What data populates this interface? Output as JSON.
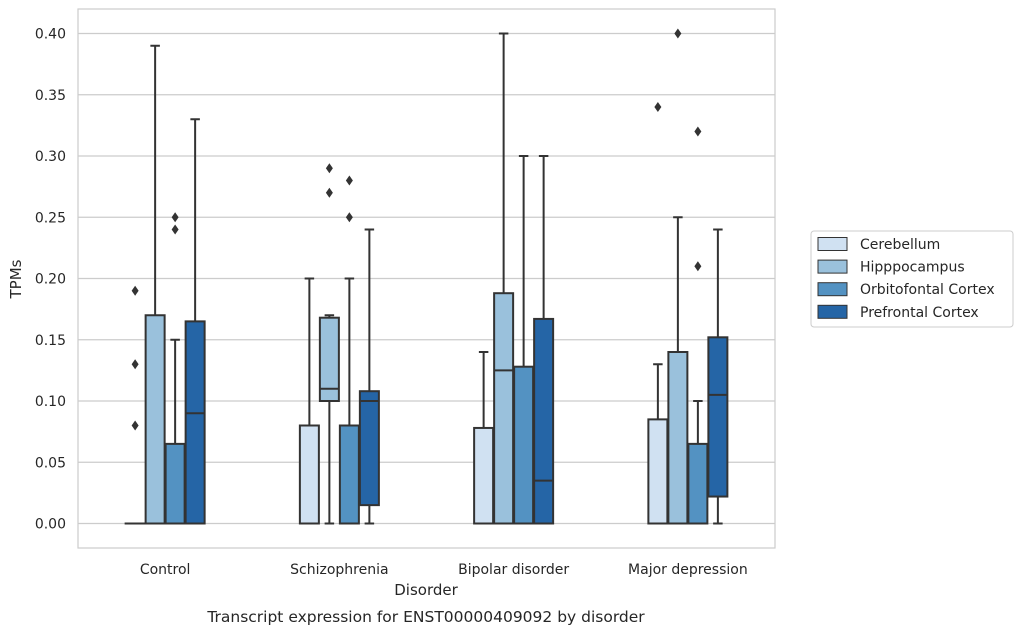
{
  "chart_data": {
    "type": "box",
    "xlabel": "Disorder",
    "ylabel": "TPMs",
    "caption": "Transcript expression for ENST00000409092 by disorder",
    "ylim": [
      -0.02,
      0.42
    ],
    "yticks": [
      "0.00",
      "0.05",
      "0.10",
      "0.15",
      "0.20",
      "0.25",
      "0.30",
      "0.35",
      "0.40"
    ],
    "grid": "horizontal",
    "legend_position": "right",
    "categories": [
      "Control",
      "Schizophrenia",
      "Bipolar disorder",
      "Major depression"
    ],
    "series": [
      {
        "name": "Cerebellum",
        "color": "#d0e1f2",
        "boxes": [
          {
            "whisker_low": 0,
            "q1": 0,
            "median": 0,
            "q3": 0,
            "whisker_high": 0,
            "outliers": [
              0.08,
              0.13,
              0.19
            ]
          },
          {
            "whisker_low": 0,
            "q1": 0,
            "median": 0,
            "q3": 0.08,
            "whisker_high": 0.2,
            "outliers": []
          },
          {
            "whisker_low": 0,
            "q1": 0,
            "median": 0,
            "q3": 0.078,
            "whisker_high": 0.14,
            "outliers": []
          },
          {
            "whisker_low": 0,
            "q1": 0,
            "median": 0,
            "q3": 0.085,
            "whisker_high": 0.13,
            "outliers": [
              0.34
            ]
          }
        ]
      },
      {
        "name": "Hipppocampus",
        "color": "#9ac1dc",
        "boxes": [
          {
            "whisker_low": 0,
            "q1": 0,
            "median": 0,
            "q3": 0.17,
            "whisker_high": 0.39,
            "outliers": []
          },
          {
            "whisker_low": 0,
            "q1": 0.1,
            "median": 0.11,
            "q3": 0.168,
            "whisker_high": 0.17,
            "outliers": [
              0.27,
              0.29
            ]
          },
          {
            "whisker_low": 0,
            "q1": 0,
            "median": 0.125,
            "q3": 0.188,
            "whisker_high": 0.4,
            "outliers": []
          },
          {
            "whisker_low": 0,
            "q1": 0,
            "median": 0,
            "q3": 0.14,
            "whisker_high": 0.25,
            "outliers": [
              0.4
            ]
          }
        ]
      },
      {
        "name": "Orbitofontal Cortex",
        "color": "#5392c2",
        "boxes": [
          {
            "whisker_low": 0,
            "q1": 0,
            "median": 0,
            "q3": 0.065,
            "whisker_high": 0.15,
            "outliers": [
              0.24,
              0.25
            ]
          },
          {
            "whisker_low": 0,
            "q1": 0,
            "median": 0,
            "q3": 0.08,
            "whisker_high": 0.2,
            "outliers": [
              0.25,
              0.28
            ]
          },
          {
            "whisker_low": 0,
            "q1": 0,
            "median": 0,
            "q3": 0.128,
            "whisker_high": 0.3,
            "outliers": []
          },
          {
            "whisker_low": 0,
            "q1": 0,
            "median": 0,
            "q3": 0.065,
            "whisker_high": 0.1,
            "outliers": [
              0.21,
              0.32
            ]
          }
        ]
      },
      {
        "name": "Prefrontal Cortex",
        "color": "#2565a6",
        "boxes": [
          {
            "whisker_low": 0,
            "q1": 0,
            "median": 0.09,
            "q3": 0.165,
            "whisker_high": 0.33,
            "outliers": []
          },
          {
            "whisker_low": 0,
            "q1": 0.015,
            "median": 0.1,
            "q3": 0.108,
            "whisker_high": 0.24,
            "outliers": []
          },
          {
            "whisker_low": 0,
            "q1": 0,
            "median": 0.035,
            "q3": 0.167,
            "whisker_high": 0.3,
            "outliers": []
          },
          {
            "whisker_low": 0,
            "q1": 0.022,
            "median": 0.105,
            "q3": 0.152,
            "whisker_high": 0.24,
            "outliers": []
          }
        ]
      }
    ]
  }
}
